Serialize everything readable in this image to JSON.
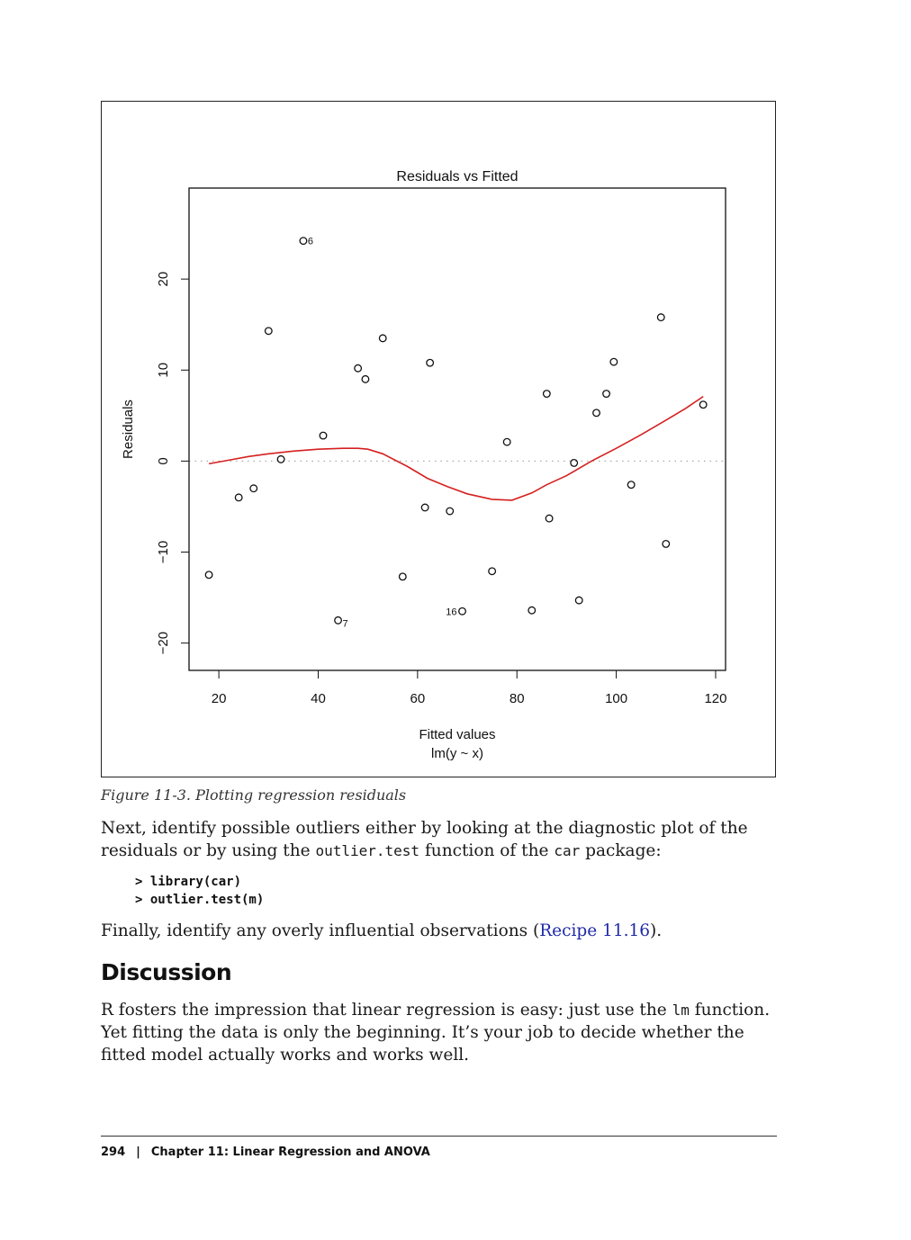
{
  "figure": {
    "caption": "Figure 11-3. Plotting regression residuals"
  },
  "chart_data": {
    "type": "scatter",
    "title": "Residuals vs Fitted",
    "xlabel": "Fitted values",
    "xlabel_sub": "lm(y ~ x)",
    "ylabel": "Residuals",
    "xlim": [
      14,
      122
    ],
    "ylim": [
      -23,
      30
    ],
    "x_ticks": [
      20,
      40,
      60,
      80,
      100,
      120
    ],
    "y_ticks": [
      -20,
      -10,
      0,
      10,
      20
    ],
    "y_tick_labels": [
      "−20",
      "−10",
      "0",
      "10",
      "20"
    ],
    "reference_line_y": 0,
    "points": [
      {
        "x": 18,
        "y": -12.5
      },
      {
        "x": 24,
        "y": -4
      },
      {
        "x": 27,
        "y": -3
      },
      {
        "x": 30,
        "y": 14.3
      },
      {
        "x": 32.5,
        "y": 0.2
      },
      {
        "x": 37,
        "y": 24.2,
        "label": "6"
      },
      {
        "x": 41,
        "y": 2.8
      },
      {
        "x": 44,
        "y": -17.5,
        "label": "7"
      },
      {
        "x": 48,
        "y": 10.2
      },
      {
        "x": 49.5,
        "y": 9
      },
      {
        "x": 53,
        "y": 13.5
      },
      {
        "x": 57,
        "y": -12.7
      },
      {
        "x": 61.5,
        "y": -5.1
      },
      {
        "x": 62.5,
        "y": 10.8
      },
      {
        "x": 66.5,
        "y": -5.5
      },
      {
        "x": 69,
        "y": -16.5,
        "label": "16"
      },
      {
        "x": 75,
        "y": -12.1
      },
      {
        "x": 78,
        "y": 2.1
      },
      {
        "x": 83,
        "y": -16.4
      },
      {
        "x": 86,
        "y": 7.4
      },
      {
        "x": 86.5,
        "y": -6.3
      },
      {
        "x": 91.5,
        "y": -0.2
      },
      {
        "x": 92.5,
        "y": -15.3
      },
      {
        "x": 96,
        "y": 5.3
      },
      {
        "x": 98,
        "y": 7.4
      },
      {
        "x": 99.5,
        "y": 10.9
      },
      {
        "x": 103,
        "y": -2.6
      },
      {
        "x": 109,
        "y": 15.8
      },
      {
        "x": 110,
        "y": -9.1
      },
      {
        "x": 117.5,
        "y": 6.2
      }
    ],
    "smooth_line": {
      "color": "#d62020",
      "x": [
        18,
        22,
        26,
        30,
        35,
        40,
        45,
        48,
        50,
        53,
        58,
        62,
        66,
        70,
        75,
        79,
        83,
        86,
        90,
        95,
        100,
        105,
        110,
        114,
        117.5
      ],
      "y": [
        -0.3,
        0.1,
        0.5,
        0.8,
        1.1,
        1.3,
        1.4,
        1.4,
        1.3,
        0.8,
        -0.6,
        -1.9,
        -2.8,
        -3.6,
        -4.2,
        -4.3,
        -3.5,
        -2.6,
        -1.6,
        0.0,
        1.4,
        2.9,
        4.5,
        5.8,
        7.1
      ]
    }
  },
  "text": {
    "para1_a": "Next, identify possible outliers either by looking at the diagnostic plot of the residuals or by using the ",
    "para1_code1": "outlier.test",
    "para1_b": " function of the ",
    "para1_code2": "car",
    "para1_c": " package:",
    "code_line1": "> library(car)",
    "code_line2": "> outlier.test(m)",
    "para2_a": "Finally, identify any overly influential observations (",
    "para2_link": "Recipe 11.16",
    "para2_b": ").",
    "heading": "Discussion",
    "para3_a": "R fosters the impression that linear regression is easy: just use the ",
    "para3_code": "lm",
    "para3_b": " function. Yet fitting the data is only the beginning. It’s your job to decide whether the fitted model actually works and works well."
  },
  "footer": {
    "page_number": "294",
    "separator": "|",
    "chapter": "Chapter 11:  Linear Regression and ANOVA"
  }
}
